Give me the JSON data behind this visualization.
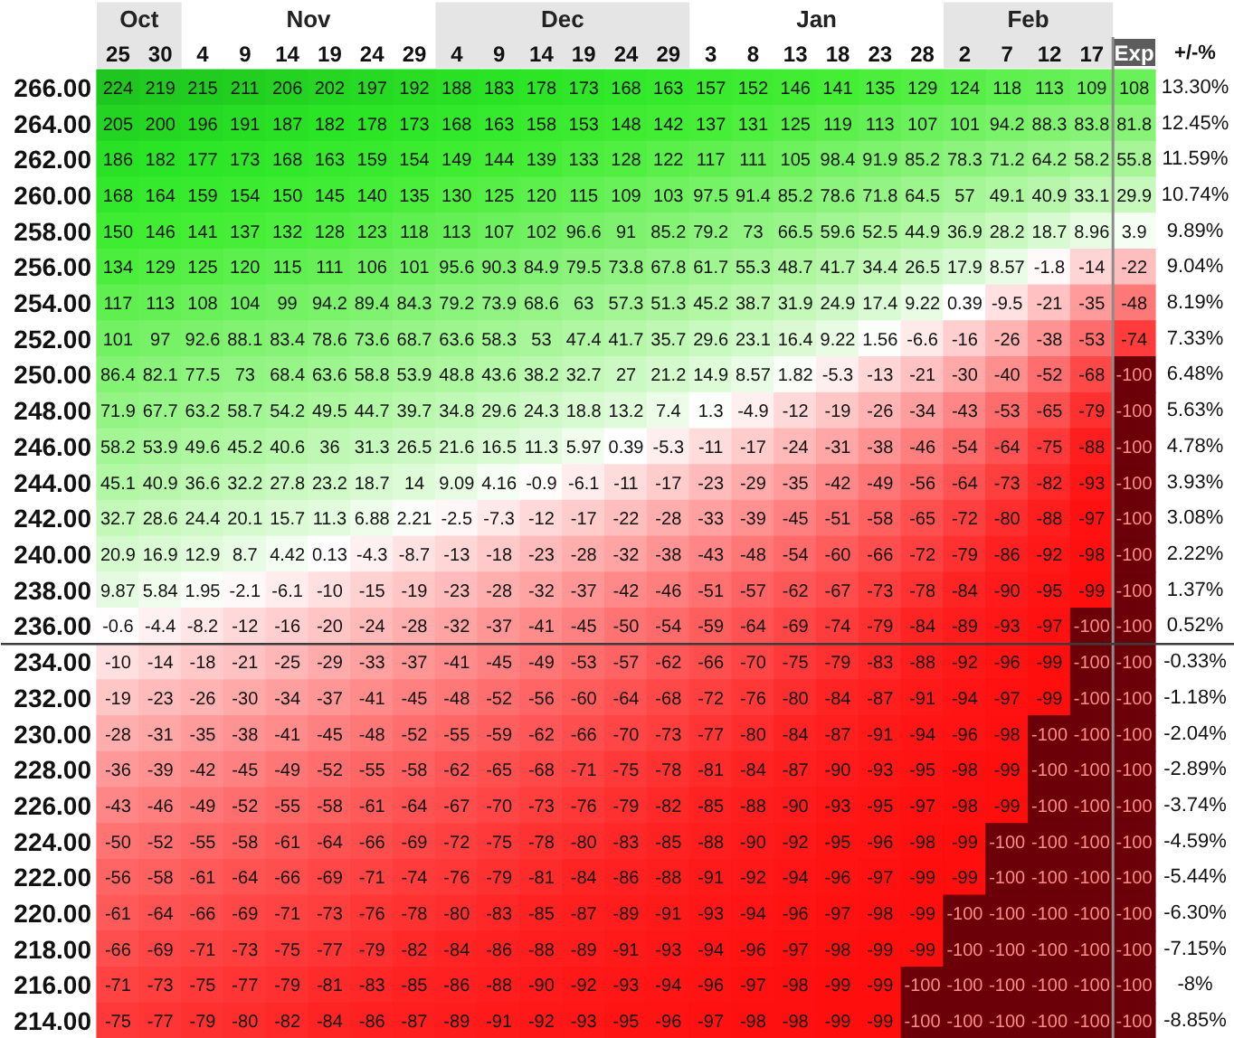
{
  "chart_data": {
    "type": "heatmap",
    "data_labels": true,
    "y2label": "+/-%",
    "annotations": [
      "Oct",
      "Nov",
      "Dec",
      "Jan",
      "Feb"
    ],
    "categories": [
      "25",
      "30",
      "4",
      "9",
      "14",
      "19",
      "24",
      "29",
      "4",
      "9",
      "14",
      "19",
      "24",
      "29",
      "3",
      "8",
      "13",
      "18",
      "23",
      "28",
      "2",
      "7",
      "12",
      "17",
      "Exp"
    ],
    "y_categories": [
      "266.00",
      "264.00",
      "262.00",
      "260.00",
      "258.00",
      "256.00",
      "254.00",
      "252.00",
      "250.00",
      "248.00",
      "246.00",
      "244.00",
      "242.00",
      "240.00",
      "238.00",
      "236.00",
      "234.00",
      "232.00",
      "230.00",
      "228.00",
      "226.00",
      "224.00",
      "222.00",
      "220.00",
      "218.00",
      "216.00",
      "214.00"
    ],
    "y2_categories": [
      "13.30%",
      "12.45%",
      "11.59%",
      "10.74%",
      "9.89%",
      "9.04%",
      "8.19%",
      "7.33%",
      "6.48%",
      "5.63%",
      "4.78%",
      "3.93%",
      "3.08%",
      "2.22%",
      "1.37%",
      "0.52%",
      "-0.33%",
      "-1.18%",
      "-2.04%",
      "-2.89%",
      "-3.74%",
      "-4.59%",
      "-5.44%",
      "-6.30%",
      "-7.15%",
      "-8%",
      "-8.85%"
    ],
    "ref_lines": [
      {
        "axis": "y",
        "value": "234.00",
        "color": "#3c3c3c"
      },
      {
        "axis": "x",
        "value": "Exp",
        "color": "#8c8c8c"
      }
    ],
    "cells": [
      [
        224,
        219,
        215,
        211,
        206,
        202,
        197,
        192,
        188,
        183,
        178,
        173,
        168,
        163,
        157,
        152,
        146,
        141,
        135,
        129,
        124,
        118,
        113,
        109,
        108
      ],
      [
        205,
        200,
        196,
        191,
        187,
        182,
        178,
        173,
        168,
        163,
        158,
        153,
        148,
        142,
        137,
        131,
        125,
        119,
        113,
        107,
        101,
        94.2,
        88.3,
        83.8,
        81.8
      ],
      [
        186,
        182,
        177,
        173,
        168,
        163,
        159,
        154,
        149,
        144,
        139,
        133,
        128,
        122,
        117,
        111,
        105,
        98.4,
        91.9,
        85.2,
        78.3,
        71.2,
        64.2,
        58.2,
        55.8
      ],
      [
        168,
        164,
        159,
        154,
        150,
        145,
        140,
        135,
        130,
        125,
        120,
        115,
        109,
        103,
        97.5,
        91.4,
        85.2,
        78.6,
        71.8,
        64.5,
        57,
        49.1,
        40.9,
        33.1,
        29.9
      ],
      [
        150,
        146,
        141,
        137,
        132,
        128,
        123,
        118,
        113,
        107,
        102,
        96.6,
        91,
        85.2,
        79.2,
        73,
        66.5,
        59.6,
        52.5,
        44.9,
        36.9,
        28.2,
        18.7,
        8.96,
        3.9
      ],
      [
        134,
        129,
        125,
        120,
        115,
        111,
        106,
        101,
        95.6,
        90.3,
        84.9,
        79.5,
        73.8,
        67.8,
        61.7,
        55.3,
        48.7,
        41.7,
        34.4,
        26.5,
        17.9,
        8.57,
        -1.8,
        -14,
        -22
      ],
      [
        117,
        113,
        108,
        104,
        99,
        94.2,
        89.4,
        84.3,
        79.2,
        73.9,
        68.6,
        63,
        57.3,
        51.3,
        45.2,
        38.7,
        31.9,
        24.9,
        17.4,
        9.22,
        0.39,
        -9.5,
        -21,
        -35,
        -48
      ],
      [
        101,
        97,
        92.6,
        88.1,
        83.4,
        78.6,
        73.6,
        68.7,
        63.6,
        58.3,
        53,
        47.4,
        41.7,
        35.7,
        29.6,
        23.1,
        16.4,
        9.22,
        1.56,
        -6.6,
        -16,
        -26,
        -38,
        -53,
        -74
      ],
      [
        86.4,
        82.1,
        77.5,
        73,
        68.4,
        63.6,
        58.8,
        53.9,
        48.8,
        43.6,
        38.2,
        32.7,
        27,
        21.2,
        14.9,
        8.57,
        1.82,
        -5.3,
        -13,
        -21,
        -30,
        -40,
        -52,
        -68,
        -100
      ],
      [
        71.9,
        67.7,
        63.2,
        58.7,
        54.2,
        49.5,
        44.7,
        39.7,
        34.8,
        29.6,
        24.3,
        18.8,
        13.2,
        7.4,
        1.3,
        -4.9,
        -12,
        -19,
        -26,
        -34,
        -43,
        -53,
        -65,
        -79,
        -100
      ],
      [
        58.2,
        53.9,
        49.6,
        45.2,
        40.6,
        36,
        31.3,
        26.5,
        21.6,
        16.5,
        11.3,
        5.97,
        0.39,
        -5.3,
        -11,
        -17,
        -24,
        -31,
        -38,
        -46,
        -54,
        -64,
        -75,
        -88,
        -100
      ],
      [
        45.1,
        40.9,
        36.6,
        32.2,
        27.8,
        23.2,
        18.7,
        14,
        9.09,
        4.16,
        -0.9,
        -6.1,
        -11,
        -17,
        -23,
        -29,
        -35,
        -42,
        -49,
        -56,
        -64,
        -73,
        -82,
        -93,
        -100
      ],
      [
        32.7,
        28.6,
        24.4,
        20.1,
        15.7,
        11.3,
        6.88,
        2.21,
        -2.5,
        -7.3,
        -12,
        -17,
        -22,
        -28,
        -33,
        -39,
        -45,
        -51,
        -58,
        -65,
        -72,
        -80,
        -88,
        -97,
        -100
      ],
      [
        20.9,
        16.9,
        12.9,
        8.7,
        4.42,
        0.13,
        -4.3,
        -8.7,
        -13,
        -18,
        -23,
        -28,
        -32,
        -38,
        -43,
        -48,
        -54,
        -60,
        -66,
        -72,
        -79,
        -86,
        -92,
        -98,
        -100
      ],
      [
        9.87,
        5.84,
        1.95,
        -2.1,
        -6.1,
        -10,
        -15,
        -19,
        -23,
        -28,
        -32,
        -37,
        -42,
        -46,
        -51,
        -57,
        -62,
        -67,
        -73,
        -78,
        -84,
        -90,
        -95,
        -99,
        -100
      ],
      [
        -0.6,
        -4.4,
        -8.2,
        -12,
        -16,
        -20,
        -24,
        -28,
        -32,
        -37,
        -41,
        -45,
        -50,
        -54,
        -59,
        -64,
        -69,
        -74,
        -79,
        -84,
        -89,
        -93,
        -97,
        -100,
        -100
      ],
      [
        -10,
        -14,
        -18,
        -21,
        -25,
        -29,
        -33,
        -37,
        -41,
        -45,
        -49,
        -53,
        -57,
        -62,
        -66,
        -70,
        -75,
        -79,
        -83,
        -88,
        -92,
        -96,
        -99,
        -100,
        -100
      ],
      [
        -19,
        -23,
        -26,
        -30,
        -34,
        -37,
        -41,
        -45,
        -48,
        -52,
        -56,
        -60,
        -64,
        -68,
        -72,
        -76,
        -80,
        -84,
        -87,
        -91,
        -94,
        -97,
        -99,
        -100,
        -100
      ],
      [
        -28,
        -31,
        -35,
        -38,
        -41,
        -45,
        -48,
        -52,
        -55,
        -59,
        -62,
        -66,
        -70,
        -73,
        -77,
        -80,
        -84,
        -87,
        -91,
        -94,
        -96,
        -98,
        -100,
        -100,
        -100
      ],
      [
        -36,
        -39,
        -42,
        -45,
        -49,
        -52,
        -55,
        -58,
        -62,
        -65,
        -68,
        -71,
        -75,
        -78,
        -81,
        -84,
        -87,
        -90,
        -93,
        -95,
        -98,
        -99,
        -100,
        -100,
        -100
      ],
      [
        -43,
        -46,
        -49,
        -52,
        -55,
        -58,
        -61,
        -64,
        -67,
        -70,
        -73,
        -76,
        -79,
        -82,
        -85,
        -88,
        -90,
        -93,
        -95,
        -97,
        -98,
        -99,
        -100,
        -100,
        -100
      ],
      [
        -50,
        -52,
        -55,
        -58,
        -61,
        -64,
        -66,
        -69,
        -72,
        -75,
        -78,
        -80,
        -83,
        -85,
        -88,
        -90,
        -92,
        -95,
        -96,
        -98,
        -99,
        -100,
        -100,
        -100,
        -100
      ],
      [
        -56,
        -58,
        -61,
        -64,
        -66,
        -69,
        -71,
        -74,
        -76,
        -79,
        -81,
        -84,
        -86,
        -88,
        -91,
        -92,
        -94,
        -96,
        -97,
        -99,
        -99,
        -100,
        -100,
        -100,
        -100
      ],
      [
        -61,
        -64,
        -66,
        -69,
        -71,
        -73,
        -76,
        -78,
        -80,
        -83,
        -85,
        -87,
        -89,
        -91,
        -93,
        -94,
        -96,
        -97,
        -98,
        -99,
        -100,
        -100,
        -100,
        -100,
        -100
      ],
      [
        -66,
        -69,
        -71,
        -73,
        -75,
        -77,
        -79,
        -82,
        -84,
        -86,
        -88,
        -89,
        -91,
        -93,
        -94,
        -96,
        -97,
        -98,
        -99,
        -99,
        -100,
        -100,
        -100,
        -100,
        -100
      ],
      [
        -71,
        -73,
        -75,
        -77,
        -79,
        -81,
        -83,
        -85,
        -86,
        -88,
        -90,
        -92,
        -93,
        -94,
        -96,
        -97,
        -98,
        -99,
        -99,
        -100,
        -100,
        -100,
        -100,
        -100,
        -100
      ],
      [
        -75,
        -77,
        -79,
        -80,
        -82,
        -84,
        -86,
        -87,
        -89,
        -91,
        -92,
        -93,
        -95,
        -96,
        -97,
        -98,
        -98,
        -99,
        -99,
        -100,
        -100,
        -100,
        -100,
        -100,
        -100
      ]
    ]
  }
}
